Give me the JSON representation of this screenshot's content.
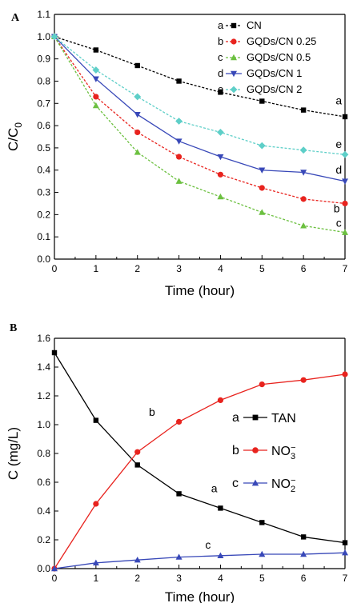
{
  "chart_data": [
    {
      "panel": "A",
      "type": "line",
      "xlabel": "Time (hour)",
      "ylabel": "C/C",
      "ylabel_sub": "0",
      "xlim": [
        0,
        7
      ],
      "ylim": [
        0.0,
        1.1
      ],
      "xticks": [
        0,
        1,
        2,
        3,
        4,
        5,
        6,
        7
      ],
      "yticks": [
        0.0,
        0.1,
        0.2,
        0.3,
        0.4,
        0.5,
        0.6,
        0.7,
        0.8,
        0.9,
        1.0,
        1.1
      ],
      "x": [
        0,
        1,
        2,
        3,
        4,
        5,
        6,
        7
      ],
      "legend_position": "top-right",
      "series": [
        {
          "letter": "a",
          "name": "CN",
          "color": "#000000",
          "marker": "square",
          "dashed": true,
          "values": [
            1.0,
            0.94,
            0.87,
            0.8,
            0.75,
            0.71,
            0.67,
            0.64
          ]
        },
        {
          "letter": "b",
          "name": "GQDs/CN 0.25",
          "color": "#e8231e",
          "marker": "circle",
          "dashed": true,
          "values": [
            1.0,
            0.73,
            0.57,
            0.46,
            0.38,
            0.32,
            0.27,
            0.25
          ]
        },
        {
          "letter": "c",
          "name": "GQDs/CN 0.5",
          "color": "#6cc040",
          "marker": "triangle-up",
          "dashed": true,
          "values": [
            1.0,
            0.69,
            0.48,
            0.35,
            0.28,
            0.21,
            0.15,
            0.12
          ]
        },
        {
          "letter": "d",
          "name": "GQDs/CN 1",
          "color": "#3848b8",
          "marker": "triangle-down",
          "dashed": false,
          "values": [
            1.0,
            0.81,
            0.65,
            0.53,
            0.46,
            0.4,
            0.39,
            0.35
          ]
        },
        {
          "letter": "e",
          "name": "GQDs/CN 2",
          "color": "#5ecfc8",
          "marker": "diamond",
          "dashed": true,
          "values": [
            1.0,
            0.85,
            0.73,
            0.62,
            0.57,
            0.51,
            0.49,
            0.47
          ]
        }
      ]
    },
    {
      "panel": "B",
      "type": "line",
      "xlabel": "Time (hour)",
      "ylabel": "C (mg/L)",
      "xlim": [
        0,
        7
      ],
      "ylim": [
        0.0,
        1.6
      ],
      "xticks": [
        0,
        1,
        2,
        3,
        4,
        5,
        6,
        7
      ],
      "yticks": [
        0.0,
        0.2,
        0.4,
        0.6,
        0.8,
        1.0,
        1.2,
        1.4,
        1.6
      ],
      "x": [
        0,
        1,
        2,
        3,
        4,
        5,
        6,
        7
      ],
      "legend_position": "center-right",
      "series": [
        {
          "letter": "a",
          "name": "TAN",
          "name_sup": "",
          "color": "#000000",
          "marker": "square",
          "values": [
            1.5,
            1.03,
            0.72,
            0.52,
            0.42,
            0.32,
            0.22,
            0.18
          ]
        },
        {
          "letter": "b",
          "name": "NO",
          "name_sub": "3",
          "name_sup": "−",
          "color": "#e8231e",
          "marker": "circle",
          "values": [
            0.0,
            0.45,
            0.81,
            1.02,
            1.17,
            1.28,
            1.31,
            1.35
          ]
        },
        {
          "letter": "c",
          "name": "NO",
          "name_sub": "2",
          "name_sup": "−",
          "color": "#3848b8",
          "marker": "triangle-up",
          "values": [
            0.0,
            0.04,
            0.06,
            0.08,
            0.09,
            0.1,
            0.1,
            0.11
          ]
        }
      ]
    }
  ]
}
